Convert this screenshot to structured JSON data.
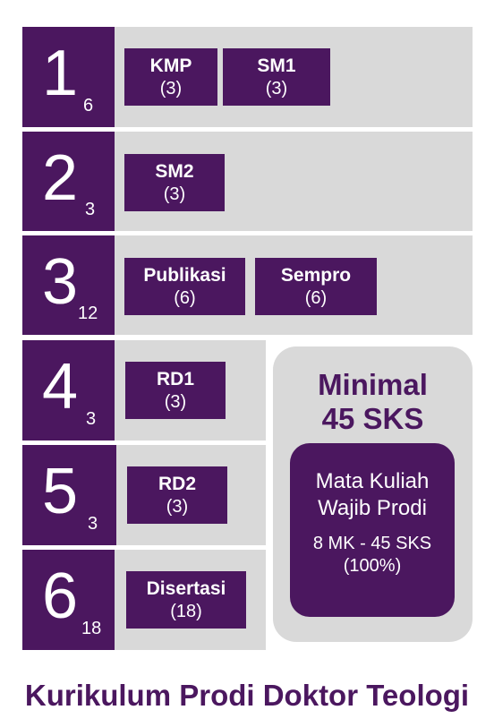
{
  "semesters": [
    {
      "number": "1",
      "sks": "6",
      "courses": [
        {
          "name": "KMP",
          "credits": "(3)"
        },
        {
          "name": "SM1",
          "credits": "(3)"
        }
      ]
    },
    {
      "number": "2",
      "sks": "3",
      "courses": [
        {
          "name": "SM2",
          "credits": "(3)"
        }
      ]
    },
    {
      "number": "3",
      "sks": "12",
      "courses": [
        {
          "name": "Publikasi",
          "credits": "(6)"
        },
        {
          "name": "Sempro",
          "credits": "(6)"
        }
      ]
    },
    {
      "number": "4",
      "sks": "3",
      "courses": [
        {
          "name": "RD1",
          "credits": "(3)"
        }
      ]
    },
    {
      "number": "5",
      "sks": "3",
      "courses": [
        {
          "name": "RD2",
          "credits": "(3)"
        }
      ]
    },
    {
      "number": "6",
      "sks": "18",
      "courses": [
        {
          "name": "Disertasi",
          "credits": "(18)"
        }
      ]
    }
  ],
  "summary": {
    "minimum_line1": "Minimal",
    "minimum_line2": "45 SKS",
    "mandatory_line1": "Mata Kuliah",
    "mandatory_line2": "Wajib Prodi",
    "count_line1": "8 MK - 45 SKS",
    "count_line2": "(100%)"
  },
  "title": "Kurikulum Prodi Doktor Teologi",
  "colors": {
    "primary": "#4b175f",
    "gray": "#d9d9d9",
    "background": "#ffffff"
  }
}
